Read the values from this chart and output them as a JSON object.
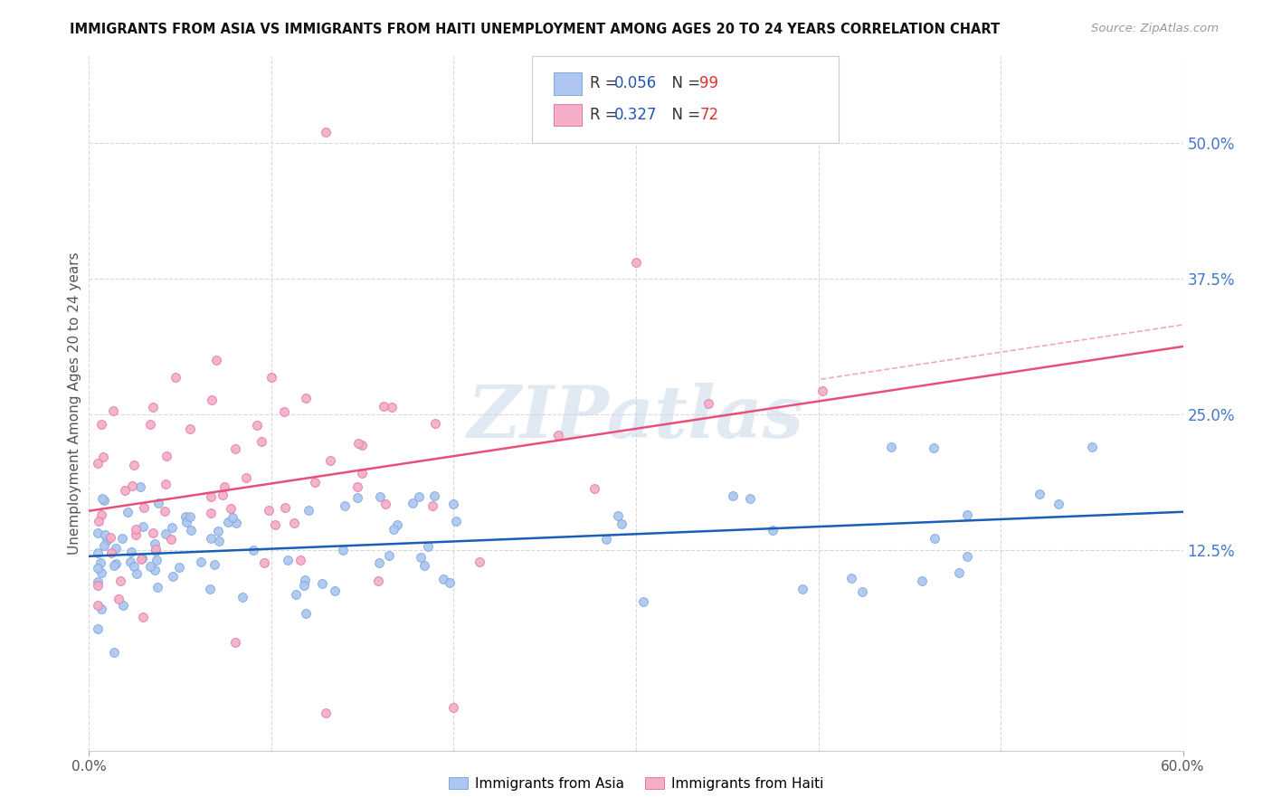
{
  "title": "IMMIGRANTS FROM ASIA VS IMMIGRANTS FROM HAITI UNEMPLOYMENT AMONG AGES 20 TO 24 YEARS CORRELATION CHART",
  "source": "Source: ZipAtlas.com",
  "ylabel": "Unemployment Among Ages 20 to 24 years",
  "ytick_vals": [
    0.5,
    0.375,
    0.25,
    0.125
  ],
  "ytick_labels": [
    "50.0%",
    "37.5%",
    "25.0%",
    "12.5%"
  ],
  "xlim": [
    0.0,
    0.6
  ],
  "ylim": [
    -0.06,
    0.58
  ],
  "asia_color": "#aec6f0",
  "asia_edge_color": "#7aaae0",
  "haiti_color": "#f5adc8",
  "haiti_edge_color": "#e07aaa",
  "asia_trend_color": "#1a5fb4",
  "haiti_trend_color": "#e8507a",
  "asia_R": 0.056,
  "asia_N": 99,
  "haiti_R": 0.327,
  "haiti_N": 72,
  "watermark_text": "ZIPatlas",
  "grid_color": "#d8d8d8",
  "background_color": "#ffffff",
  "text_color_blue": "#4477cc",
  "right_axis_color": "#4477cc",
  "legend_R_color": "#2255bb",
  "legend_N_color": "#dd3333"
}
